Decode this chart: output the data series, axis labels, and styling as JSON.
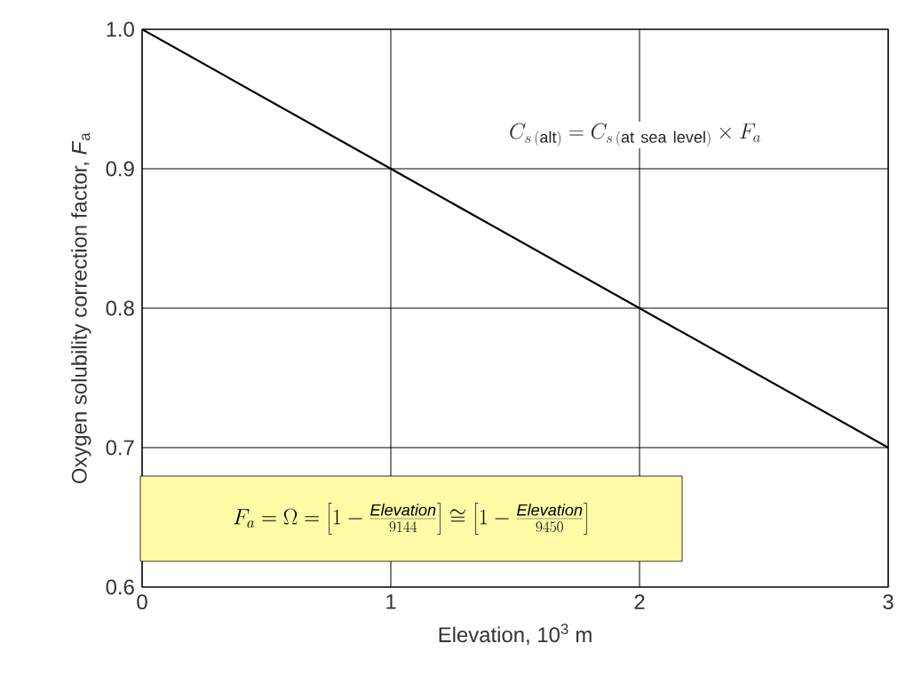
{
  "chart_data": {
    "type": "line",
    "xlabel": "Elevation, 10$^{3}$ m",
    "ylabel": "Oxygen solubility correction factor, *F*$_{a}$",
    "x": [
      0,
      1,
      2,
      3
    ],
    "series": [
      {
        "color": "#000000",
        "values": [
          1.0,
          0.9,
          0.8,
          0.7
        ]
      }
    ],
    "xlim": [
      0,
      3
    ],
    "ylim": [
      0.6,
      1.0
    ],
    "xticks": [
      0,
      1,
      2,
      3
    ],
    "yticks": [
      0.6,
      0.7,
      0.8,
      0.9,
      {
        "value": 1,
        "label": "1.0"
      }
    ],
    "grid": true,
    "marker": "none",
    "line_style": "solid",
    "annotations": [
      "C_{s\\,(\\mathrm{alt})} = C_{s\\,(\\mathrm{at\\ sea\\ level})} \\times F_a",
      "F_a = \\Omega = \\left[1-\\frac{\\mathit{Elevation}}{9144}\\right] \\cong \\left[1-\\frac{\\mathit{Elevation}}{9450}\\right]"
    ]
  }
}
